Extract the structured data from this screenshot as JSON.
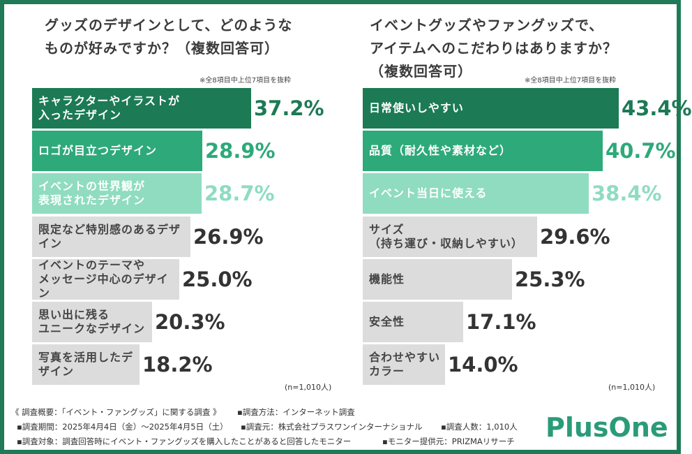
{
  "colors": {
    "border": "#1e7a57",
    "rank1": "#1c7a55",
    "rank2": "#2ea97a",
    "rank3": "#8fdcc1",
    "other": "#dcdcdc",
    "val_rank1": "#1c7a55",
    "val_rank2": "#2ea97a",
    "val_rank3": "#8fdcc1",
    "val_other": "#333333"
  },
  "left": {
    "title": "グッズのデザインとして、どのような\nものが好みですか？（複数回答可）",
    "note": "※全8項目中上位7項目を抜粋",
    "n_label": "(n=1,010人)"
  },
  "right": {
    "title": "イベントグッズやファングッズで、\nアイテムへのこだわりはありますか？\n（複数回答可）",
    "note": "※全8項目中上位7項目を抜粋",
    "n_label": "(n=1,010人)"
  },
  "chart_data": [
    {
      "type": "bar",
      "orientation": "horizontal",
      "title": "グッズのデザインとして、どのようなものが好みですか？（複数回答可）",
      "unit": "%",
      "xlim": [
        0,
        50
      ],
      "categories": [
        "キャラクターやイラストが\n入ったデザイン",
        "ロゴが目立つデザイン",
        "イベントの世界観が\n表現されたデザイン",
        "限定など特別感のあるデザイン",
        "イベントのテーマや\nメッセージ中心のデザイン",
        "思い出に残る\nユニークなデザイン",
        "写真を活用したデザイン"
      ],
      "values": [
        37.2,
        28.9,
        28.7,
        26.9,
        25.0,
        20.3,
        18.2
      ],
      "value_labels": [
        "37.2%",
        "28.9%",
        "28.7%",
        "26.9%",
        "25.0%",
        "20.3%",
        "18.2%"
      ]
    },
    {
      "type": "bar",
      "orientation": "horizontal",
      "title": "イベントグッズやファングッズで、アイテムへのこだわりはありますか？（複数回答可）",
      "unit": "%",
      "xlim": [
        0,
        50
      ],
      "categories": [
        "日常使いしやすい",
        "品質（耐久性や素材など）",
        "イベント当日に使える",
        "サイズ\n（持ち運び・収納しやすい）",
        "機能性",
        "安全性",
        "合わせやすいカラー"
      ],
      "values": [
        43.4,
        40.7,
        38.4,
        29.6,
        25.3,
        17.1,
        14.0
      ],
      "value_labels": [
        "43.4%",
        "40.7%",
        "38.4%",
        "29.6%",
        "25.3%",
        "17.1%",
        "14.0%"
      ]
    }
  ],
  "footer": {
    "line1a": "《 調査概要：「イベント・ファングッズ」に関する調査 》",
    "line1b": "▪調査方法：インターネット調査",
    "line2a": "▪調査期間：2025年4月4日（金）～2025年4月5日（土）",
    "line2b": "▪調査元：株式会社プラスワンインターナショナル",
    "line2c": "▪調査人数：1,010人",
    "line3a": "▪調査対象：調査回答時にイベント・ファングッズを購入したことがあると回答したモニター",
    "line3b": "▪モニター提供元：PRIZMAリサーチ"
  },
  "logo": {
    "text": "PlusOne"
  }
}
